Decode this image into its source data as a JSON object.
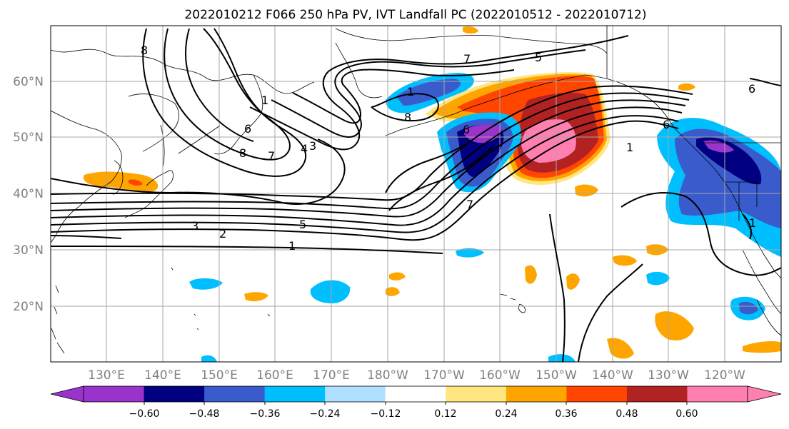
{
  "title": "2022010212 F066 250 hPa PV, IVT Landfall PC (2022010512 - 2022010712)",
  "lat_labels": [
    "60°N",
    "50°N",
    "40°N",
    "30°N",
    "20°N"
  ],
  "lon_labels": [
    "130°E",
    "140°E",
    "150°E",
    "160°E",
    "170°E",
    "180°W",
    "170°W",
    "160°W",
    "150°W",
    "140°W",
    "130°W",
    "120°W"
  ],
  "colorbar": {
    "colors": [
      "#9933cc",
      "#000080",
      "#3a5bcc",
      "#00bfff",
      "#b0e0ff",
      "#ffffff",
      "#ffe680",
      "#ffa500",
      "#ff4500",
      "#b22222",
      "#ff80b0"
    ],
    "tick_labels": [
      "-0.60",
      "-0.48",
      "-0.36",
      "-0.24",
      "-0.12",
      "0.12",
      "0.24",
      "0.36",
      "0.48",
      "0.60"
    ]
  },
  "contour_labels": [
    "8",
    "1",
    "6",
    "8",
    "7",
    "4",
    "3",
    "7",
    "5",
    "8",
    "7",
    "6",
    "1",
    "5",
    "3",
    "2",
    "1",
    "1",
    "6",
    "1",
    "6"
  ],
  "colors": {
    "grid": "#a6a6a6",
    "axis_label": "#808080"
  }
}
